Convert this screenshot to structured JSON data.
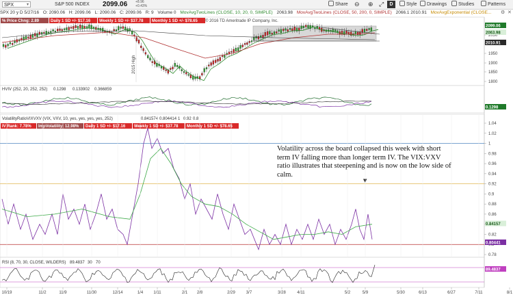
{
  "toolbar": {
    "symbol": "SPX",
    "index_name": "S&P 500 INDEX",
    "last_price": "2099.06",
    "change_up": "+8.96",
    "change_pct": "+0.43%",
    "share_label": "Share",
    "period_label": "D",
    "style_label": "Style",
    "drawings_label": "Drawings",
    "studies_label": "Studies",
    "patterns_label": "Patterns"
  },
  "infobar": {
    "date_field": "SPX 20 y D  5/27/16",
    "open": "O: 2090.06",
    "high": "H: 2099.06",
    "low": "L: 2090.06",
    "close": "C: 2099.06",
    "range": "R: 9",
    "volume": "Volume  0",
    "ma1": "MovAvgTwoLines (CLOSE, 10, 20, 0, SIMPLE)",
    "ma1_val": "2063.98",
    "ma2": "MovAvgTwoLines (CLOSE, 50, 200, 0, SIMPLE)",
    "ma2_vals": "2066.1   2010.91",
    "ma3": "MovAvgExponential (CLOSE..."
  },
  "price_pane": {
    "tags": [
      "% Price Chng: 2.89",
      "Daily 1 SD +/- $17.16",
      "Weekly 1 SD +/- $37.78",
      "Monthly 1 SD +/- $78.65"
    ],
    "copyright": "© 2016 TD Ameritrade IP Company, Inc.",
    "yaxis": [
      "2100",
      "2050",
      "2000",
      "1950",
      "1900",
      "1850",
      "1800"
    ],
    "badges": [
      "2099.06",
      "2063.98",
      "2010.91"
    ],
    "watermark": "2015 High"
  },
  "hv_pane": {
    "label": "HVIV (252, 20, 252, 252)",
    "v1": "0.1298",
    "v2": "0.133902",
    "v3": "0.366859",
    "badge": "0.1298"
  },
  "vix_pane": {
    "label": "VolatilityRatioVIXVXV (VIX, VXV, 10, yes, yes, yes, yes, 252)",
    "v1": "0.841574",
    "v2": "0.804414",
    "v3": "1",
    "v4": "0.92",
    "v5": "0.8",
    "tags": [
      "IV Rank: 7.78%",
      "ImpVolatility: 12.98%",
      "Daily 1 SD +/- $17.16",
      "Weekly 1 SD +/- $37.78",
      "Monthly 1 SD +/- $78.65"
    ],
    "yaxis": [
      "1.04",
      "1.02",
      "1",
      "0.98",
      "0.96",
      "0.94",
      "0.92",
      "0.9",
      "0.88",
      "0.86",
      "0.84",
      "0.82",
      "0.8",
      "0.78"
    ],
    "badges": [
      "0.84157",
      "0.80441"
    ],
    "annotation": "Volatility across the board collapsed this week with short term IV falling more than longer term IV.  The VIX:VXV ratio illustrates that steepening and is now on the low side of calm."
  },
  "rsi_pane": {
    "label": "RSI (8, 70, 30, CLOSE, WILDERS)",
    "v1": "89.4837",
    "v2": "30",
    "v3": "70",
    "badges": [
      "89.4837"
    ]
  },
  "xaxis": [
    "10/19",
    "11/2",
    "11/9",
    "11/30",
    "12/14",
    "1/4",
    "1/11",
    "2/1",
    "2/8",
    "2/29",
    "3/7",
    "3/28",
    "4/11",
    "5/2",
    "5/9",
    "5/30",
    "6/13",
    "6/27",
    "7/11",
    "8/1"
  ],
  "colors": {
    "price_up": "#2e9e2e",
    "price_down": "#cc2222",
    "ma_short": "#2d8a2d",
    "ma_long": "#b03030",
    "hv_line": "#1c6a2a",
    "iv_line": "#7b2fa3",
    "avg_line": "#3aa845",
    "tag_red": "#d92a2a",
    "level_one": "#2a6fb5",
    "level_mid": "#e0b650",
    "level_low": "#b83030"
  }
}
